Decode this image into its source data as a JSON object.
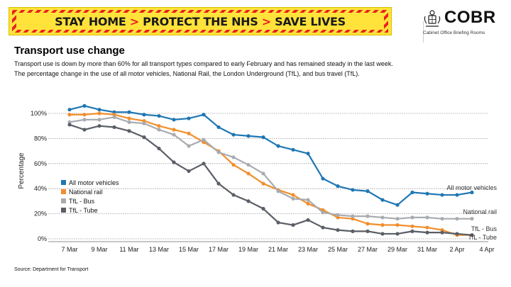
{
  "banner": {
    "part1": "STAY HOME",
    "part2": "PROTECT THE NHS",
    "part3": "SAVE LIVES",
    "separator": ">",
    "colors": {
      "background": "#ffe23a",
      "stripe": "#e8201e",
      "arrow": "#e8201e"
    }
  },
  "logo": {
    "icon": "royal-crest-icon",
    "title": "COBR",
    "subtitle": "Cabinet Office Briefing Rooms"
  },
  "header": {
    "title": "Transport use change",
    "description_line1": "Transport use is down by more than 60% for all transport types compared to early February and has remained steady in the last week.",
    "description_line2": "The percentage change in the use of all motor vehicles, National Rail, the London Underground (TfL), and bus travel (TfL)."
  },
  "chart_data": {
    "type": "line",
    "title": "",
    "xlabel": "",
    "ylabel": "Percentage",
    "ylim": [
      0,
      110
    ],
    "yticks": [
      0,
      20,
      40,
      60,
      80,
      100
    ],
    "ytick_labels": [
      "0%",
      "20%",
      "40%",
      "60%",
      "80%",
      "100%"
    ],
    "x": [
      "7 Mar",
      "8 Mar",
      "9 Mar",
      "10 Mar",
      "11 Mar",
      "12 Mar",
      "13 Mar",
      "14 Mar",
      "15 Mar",
      "16 Mar",
      "17 Mar",
      "18 Mar",
      "19 Mar",
      "20 Mar",
      "21 Mar",
      "22 Mar",
      "23 Mar",
      "24 Mar",
      "25 Mar",
      "26 Mar",
      "27 Mar",
      "28 Mar",
      "29 Mar",
      "30 Mar",
      "31 Mar",
      "1 Apr",
      "2 Apr",
      "3 Apr",
      "4 Apr"
    ],
    "xtick_labels": [
      "7 Mar",
      "9 Mar",
      "11 Mar",
      "13 Mar",
      "15 Mar",
      "17 Mar",
      "19 Mar",
      "21 Mar",
      "23 Mar",
      "25 Mar",
      "27 Mar",
      "29 Mar",
      "31 Mar",
      "2 Apr",
      "4 Apr"
    ],
    "grid": "horizontal dotted",
    "legend_position": "middle-left",
    "series": [
      {
        "name": "All motor vehicles",
        "end_label": "All motor vehicles",
        "color": "#1f77b4",
        "values": [
          103,
          106,
          103,
          101,
          101,
          99,
          98,
          95,
          96,
          99,
          89,
          83,
          82,
          81,
          74,
          71,
          68,
          48,
          42,
          39,
          38,
          31,
          27,
          37,
          36,
          35,
          35,
          37,
          null
        ]
      },
      {
        "name": "National rail",
        "end_label": "National rail",
        "color": "#f28e2b",
        "values": [
          99,
          99,
          100,
          99,
          96,
          94,
          90,
          87,
          84,
          77,
          70,
          59,
          52,
          44,
          39,
          35,
          28,
          23,
          17,
          16,
          12,
          11,
          11,
          10,
          9,
          7,
          3,
          3,
          null
        ]
      },
      {
        "name": "TfL - Bus",
        "end_label": "TfL - Bus",
        "color": "#a8abb0",
        "values": [
          93,
          95,
          95,
          97,
          93,
          92,
          87,
          83,
          74,
          79,
          69,
          65,
          59,
          52,
          38,
          32,
          31,
          21,
          19,
          18,
          18,
          17,
          16,
          17,
          17,
          16,
          16,
          16,
          null
        ]
      },
      {
        "name": "TfL - Tube",
        "end_label": "TfL - Tube",
        "color": "#5a5e66",
        "values": [
          91,
          87,
          90,
          89,
          86,
          81,
          72,
          61,
          54,
          60,
          44,
          35,
          30,
          24,
          13,
          11,
          15,
          9,
          7,
          6,
          6,
          4,
          4,
          6,
          5,
          5,
          4,
          3,
          null
        ]
      }
    ]
  },
  "footer": {
    "source": "Source: Department for Transport"
  }
}
